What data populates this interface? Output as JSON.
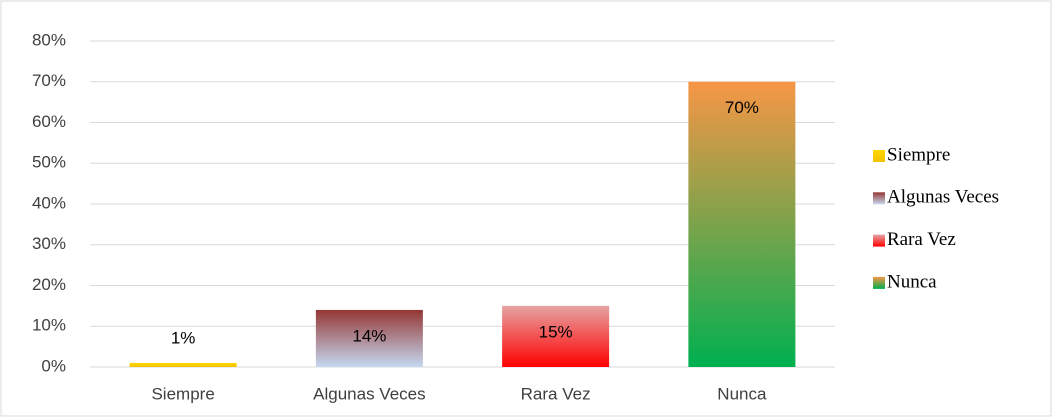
{
  "chart_data": {
    "type": "bar",
    "categories": [
      "Siempre",
      "Algunas Veces",
      "Rara Vez",
      "Nunca"
    ],
    "values": [
      1,
      14,
      15,
      70
    ],
    "value_labels": [
      "1%",
      "14%",
      "15%",
      "70%"
    ],
    "colors": [
      [
        "#ffd700",
        "#f2c200"
      ],
      [
        "#953735",
        "#c5d9f1"
      ],
      [
        "#e6a3a3",
        "#ff0000"
      ],
      [
        "#f79646",
        "#00b050"
      ]
    ],
    "ylim": [
      0,
      80
    ],
    "yticks": [
      {
        "value": 0,
        "label": "0%"
      },
      {
        "value": 10,
        "label": "10%"
      },
      {
        "value": 20,
        "label": "20%"
      },
      {
        "value": 30,
        "label": "30%"
      },
      {
        "value": 40,
        "label": "40%"
      },
      {
        "value": 50,
        "label": "50%"
      },
      {
        "value": 60,
        "label": "60%"
      },
      {
        "value": 70,
        "label": "70%"
      },
      {
        "value": 80,
        "label": "80%"
      }
    ],
    "grid": true,
    "legend": "right"
  }
}
